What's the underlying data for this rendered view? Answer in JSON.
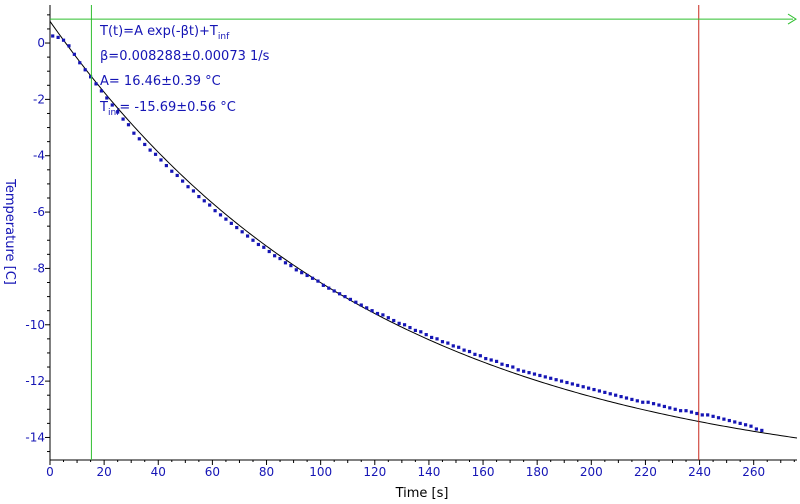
{
  "chart_data": {
    "type": "scatter",
    "xlabel": "Time [s]",
    "ylabel": "Temperature [C]",
    "xlim": [
      0,
      276
    ],
    "ylim": [
      -14.8,
      1.35
    ],
    "xticks": [
      0,
      20,
      40,
      60,
      80,
      100,
      120,
      140,
      160,
      180,
      200,
      220,
      240,
      260
    ],
    "yticks": [
      0,
      -2,
      -4,
      -6,
      -8,
      -10,
      -12,
      -14
    ],
    "grid": false,
    "colors": {
      "data": "#1515b5",
      "fit": "#000000",
      "cursor_left": "#2fbf2f",
      "cursor_right": "#c8281e",
      "tick_labels": "#1515b5",
      "axes": "#000000"
    },
    "fit": {
      "formula_main": "T(t)=A exp(-βt)+T",
      "formula_sub": "inf",
      "beta_text": "β=0.008288±0.00073 1/s",
      "A_text": "A= 16.46±0.39 °C",
      "tinf_main": "T",
      "tinf_sub": "inf",
      "tinf_rest": "= -15.69±0.56 °C",
      "A": 16.46,
      "beta": 0.008288,
      "T_inf": -15.69
    },
    "cursors": {
      "left_x": 15.3,
      "right_x": 239.7,
      "horizontal_y": 0.85
    },
    "series": [
      {
        "x": [
          1,
          3,
          5,
          7,
          9,
          11,
          13,
          15,
          17,
          19,
          21,
          23,
          25,
          27,
          29,
          31,
          33,
          35,
          37,
          39,
          41,
          43,
          45,
          47,
          49,
          51,
          53,
          55,
          57,
          59,
          61,
          63,
          65,
          67,
          69,
          71,
          73,
          75,
          77,
          79,
          81,
          83,
          85,
          87,
          89,
          91,
          93,
          95,
          97,
          99,
          101,
          103,
          105,
          107,
          109,
          111,
          113,
          115,
          117,
          119,
          121,
          123,
          125,
          127,
          129,
          131,
          133,
          135,
          137,
          139,
          141,
          143,
          145,
          147,
          149,
          151,
          153,
          155,
          157,
          159,
          161,
          163,
          165,
          167,
          169,
          171,
          173,
          175,
          177,
          179,
          181,
          183,
          185,
          187,
          189,
          191,
          193,
          195,
          197,
          199,
          201,
          203,
          205,
          207,
          209,
          211,
          213,
          215,
          217,
          219,
          221,
          223,
          225,
          227,
          229,
          231,
          233,
          235,
          237,
          239,
          241,
          243,
          245,
          247,
          249,
          251,
          253,
          255,
          257,
          259,
          261,
          263
        ],
        "y": [
          0.25,
          0.2,
          0.1,
          -0.1,
          -0.4,
          -0.7,
          -0.95,
          -1.2,
          -1.45,
          -1.7,
          -1.95,
          -2.2,
          -2.45,
          -2.7,
          -2.9,
          -3.2,
          -3.4,
          -3.6,
          -3.8,
          -3.95,
          -4.15,
          -4.35,
          -4.55,
          -4.7,
          -4.9,
          -5.1,
          -5.25,
          -5.45,
          -5.6,
          -5.75,
          -5.95,
          -6.1,
          -6.25,
          -6.4,
          -6.55,
          -6.7,
          -6.85,
          -7.0,
          -7.15,
          -7.25,
          -7.4,
          -7.55,
          -7.65,
          -7.8,
          -7.9,
          -8.05,
          -8.15,
          -8.25,
          -8.35,
          -8.45,
          -8.6,
          -8.7,
          -8.8,
          -8.9,
          -9.0,
          -9.1,
          -9.2,
          -9.3,
          -9.4,
          -9.5,
          -9.6,
          -9.65,
          -9.75,
          -9.85,
          -9.95,
          -10.0,
          -10.1,
          -10.2,
          -10.25,
          -10.35,
          -10.45,
          -10.5,
          -10.6,
          -10.65,
          -10.75,
          -10.8,
          -10.9,
          -10.95,
          -11.05,
          -11.1,
          -11.2,
          -11.25,
          -11.3,
          -11.4,
          -11.45,
          -11.5,
          -11.6,
          -11.65,
          -11.7,
          -11.75,
          -11.8,
          -11.85,
          -11.9,
          -11.95,
          -12.0,
          -12.05,
          -12.1,
          -12.15,
          -12.2,
          -12.25,
          -12.3,
          -12.35,
          -12.4,
          -12.45,
          -12.5,
          -12.55,
          -12.6,
          -12.65,
          -12.7,
          -12.75,
          -12.75,
          -12.8,
          -12.85,
          -12.9,
          -12.95,
          -13.0,
          -13.05,
          -13.05,
          -13.1,
          -13.15,
          -13.2,
          -13.2,
          -13.25,
          -13.3,
          -13.35,
          -13.4,
          -13.45,
          -13.5,
          -13.55,
          -13.6,
          -13.7,
          -13.75
        ]
      }
    ]
  }
}
